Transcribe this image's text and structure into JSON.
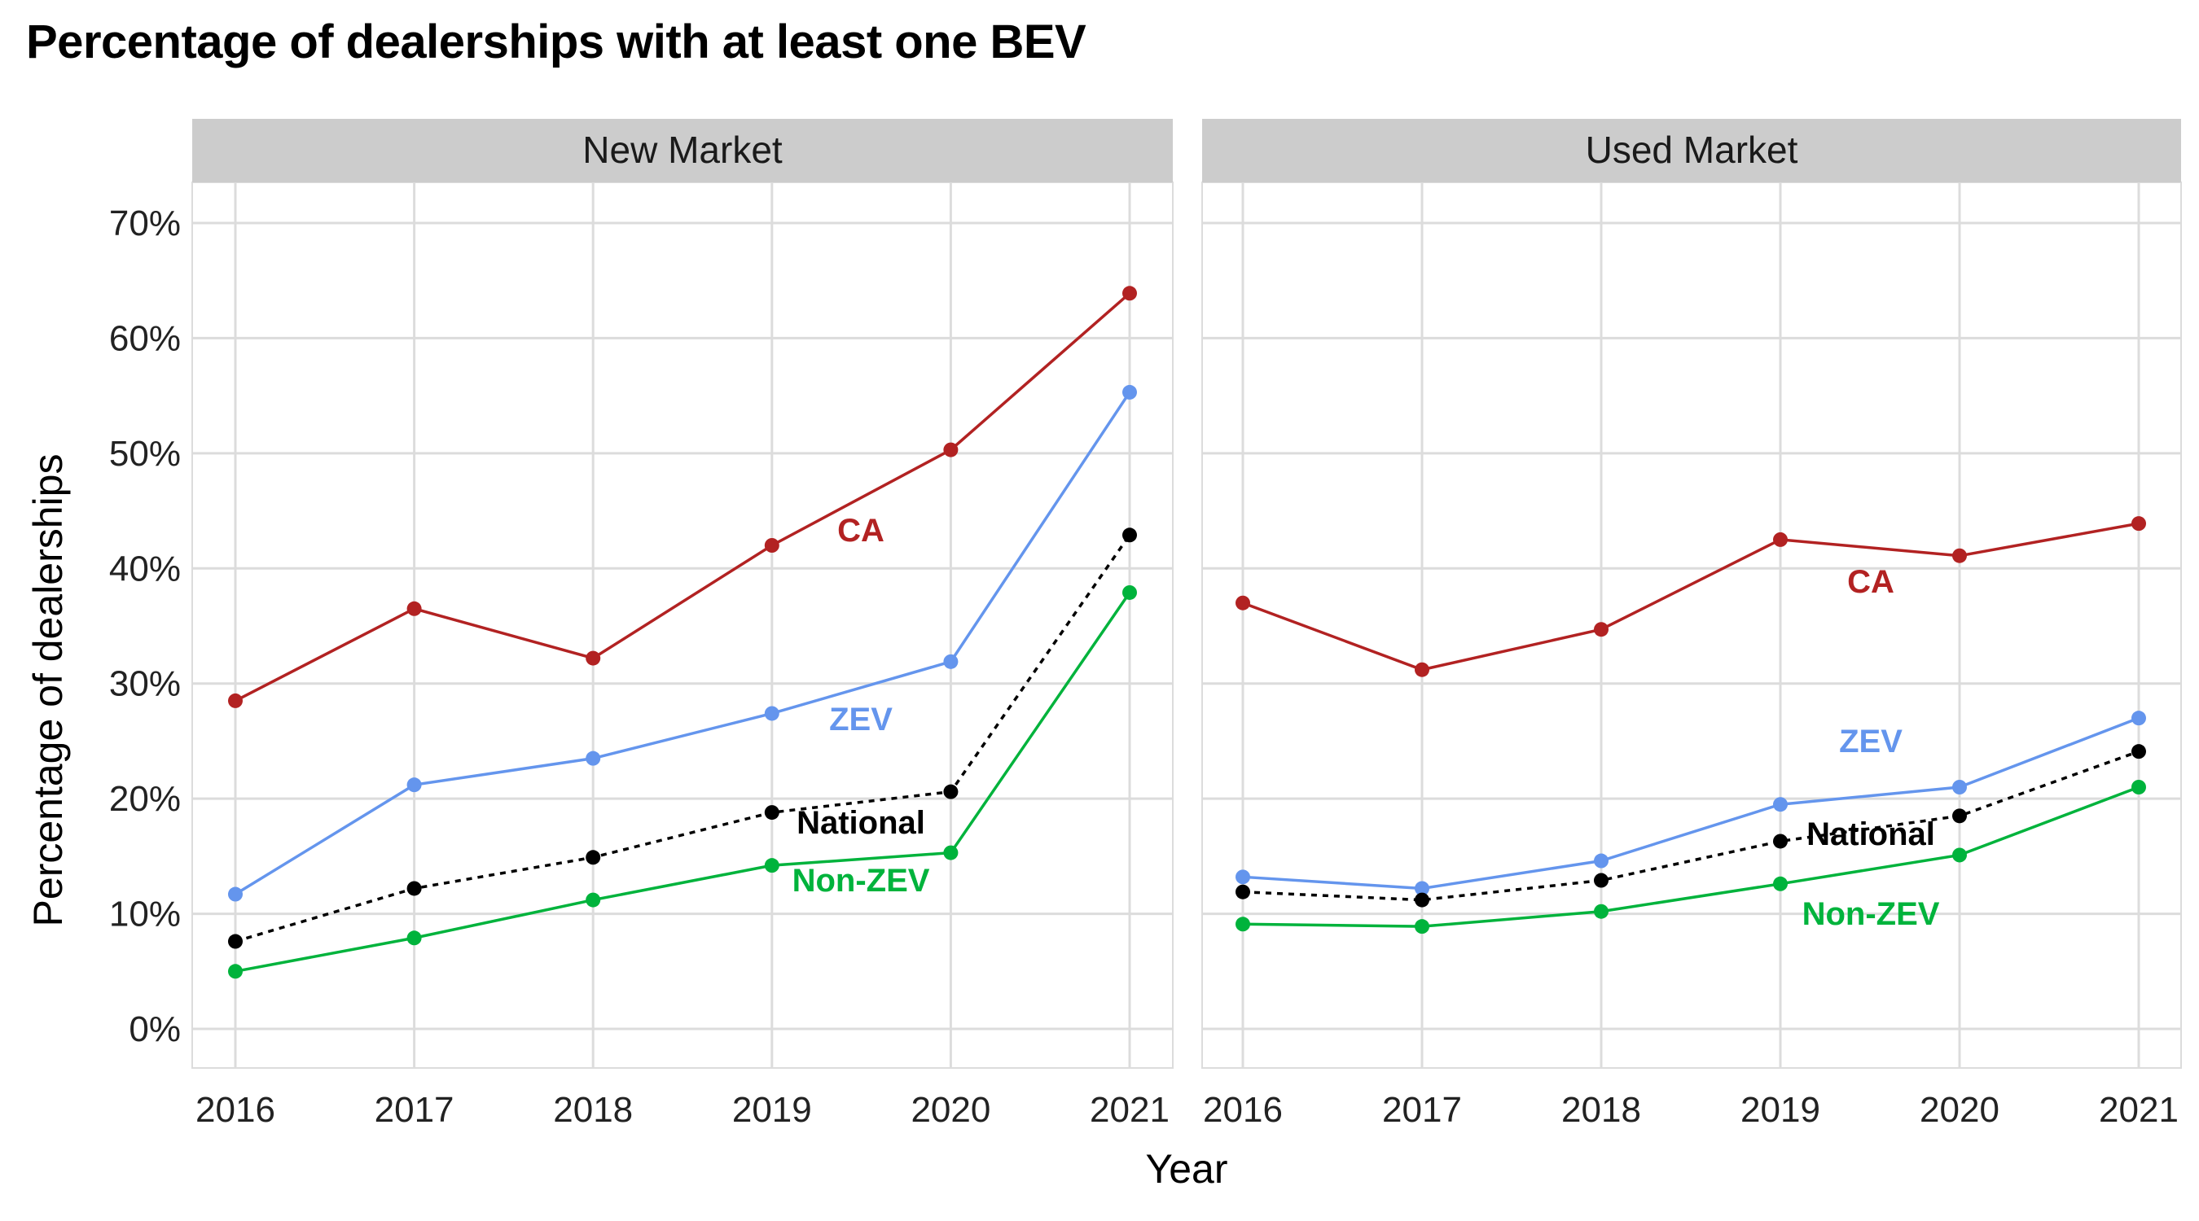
{
  "title": "Percentage of dealerships with at least one BEV",
  "colors": {
    "CA": "#b22222",
    "ZEV": "#6495ed",
    "National": "#000000",
    "Non-ZEV": "#00b33c",
    "grid": "#dcdcdc",
    "strip": "#cccccc"
  },
  "chart_data": {
    "type": "line",
    "title": "Percentage of dealerships with at least one BEV",
    "xlabel": "Year",
    "ylabel": "Percentage of dealerships",
    "x": [
      2016,
      2017,
      2018,
      2019,
      2020,
      2021
    ],
    "ylim": [
      0,
      70
    ],
    "yticks": [
      "0%",
      "10%",
      "20%",
      "30%",
      "40%",
      "50%",
      "60%",
      "70%"
    ],
    "grid": true,
    "legend": "direct labels",
    "panels": [
      {
        "name": "New Market",
        "series": [
          {
            "name": "CA",
            "values": [
              28.5,
              36.5,
              32.2,
              42.0,
              50.3,
              63.9
            ]
          },
          {
            "name": "ZEV",
            "values": [
              11.7,
              21.2,
              23.5,
              27.4,
              31.9,
              55.3
            ]
          },
          {
            "name": "National",
            "line": "dotted",
            "values": [
              7.6,
              12.2,
              14.9,
              18.8,
              20.6,
              42.9
            ]
          },
          {
            "name": "Non-ZEV",
            "values": [
              5.0,
              7.9,
              11.2,
              14.2,
              15.3,
              37.9
            ]
          }
        ]
      },
      {
        "name": "Used Market",
        "series": [
          {
            "name": "CA",
            "values": [
              37.0,
              31.2,
              34.7,
              42.5,
              41.1,
              43.9
            ]
          },
          {
            "name": "ZEV",
            "values": [
              13.2,
              12.2,
              14.6,
              19.5,
              21.0,
              27.0
            ]
          },
          {
            "name": "National",
            "line": "dotted",
            "values": [
              11.9,
              11.2,
              12.9,
              16.3,
              18.5,
              24.1
            ]
          },
          {
            "name": "Non-ZEV",
            "values": [
              9.1,
              8.9,
              10.2,
              12.6,
              15.1,
              21.0
            ]
          }
        ]
      }
    ]
  }
}
